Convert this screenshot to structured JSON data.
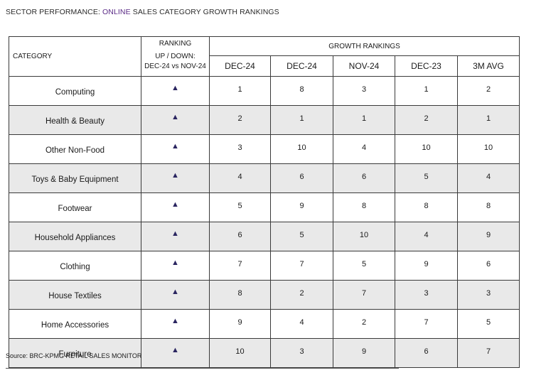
{
  "title": {
    "prefix": "SECTOR PERFORMANCE: ",
    "accent": "ONLINE",
    "suffix": " SALES CATEGORY GROWTH RANKINGS"
  },
  "accent_color": "#5b2b86",
  "table": {
    "category_header": "CATEGORY",
    "ranking_header_top": "RANKING",
    "ranking_header_line2": "UP / DOWN:",
    "ranking_header_line3": "DEC-24 vs NOV-24",
    "growth_header": "GROWTH RANKINGS",
    "columns": [
      "DEC-24",
      "DEC-24",
      "NOV-24",
      "DEC-23",
      "3M AVG"
    ],
    "rows": [
      {
        "category": "Computing",
        "direction": "▲",
        "values": [
          "1",
          "8",
          "3",
          "1",
          "2"
        ]
      },
      {
        "category": "Health & Beauty",
        "direction": "▲",
        "values": [
          "2",
          "1",
          "1",
          "2",
          "1"
        ]
      },
      {
        "category": "Other Non-Food",
        "direction": "▲",
        "values": [
          "3",
          "10",
          "4",
          "10",
          "10"
        ]
      },
      {
        "category": "Toys & Baby Equipment",
        "direction": "▲",
        "values": [
          "4",
          "6",
          "6",
          "5",
          "4"
        ]
      },
      {
        "category": "Footwear",
        "direction": "▲",
        "values": [
          "5",
          "9",
          "8",
          "8",
          "8"
        ]
      },
      {
        "category": "Household Appliances",
        "direction": "▲",
        "values": [
          "6",
          "5",
          "10",
          "4",
          "9"
        ]
      },
      {
        "category": "Clothing",
        "direction": "▲",
        "values": [
          "7",
          "7",
          "5",
          "9",
          "6"
        ]
      },
      {
        "category": "House Textiles",
        "direction": "▲",
        "values": [
          "8",
          "2",
          "7",
          "3",
          "3"
        ]
      },
      {
        "category": "Home Accessories",
        "direction": "▲",
        "values": [
          "9",
          "4",
          "2",
          "7",
          "5"
        ]
      },
      {
        "category": "Furniture",
        "direction": "▲",
        "values": [
          "10",
          "3",
          "9",
          "6",
          "7"
        ]
      }
    ]
  },
  "source": "Source: BRC-KPMG RETAIL SALES MONITOR"
}
